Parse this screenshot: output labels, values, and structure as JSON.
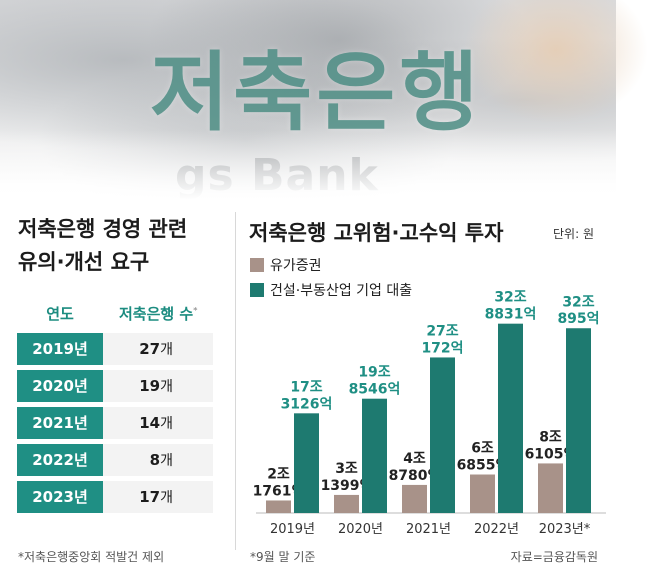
{
  "hero": {
    "title": "저축은행",
    "subtitle": "gs Bank"
  },
  "left_panel": {
    "title_line1": "저축은행 경영 관련",
    "title_line2": "유의·개선 요구",
    "header_year": "연도",
    "header_count": "저축은행 수",
    "header_mark": "*",
    "count_unit": "개",
    "rows": [
      {
        "year": "2019년",
        "count": "27"
      },
      {
        "year": "2020년",
        "count": "19"
      },
      {
        "year": "2021년",
        "count": "14"
      },
      {
        "year": "2022년",
        "count": "8"
      },
      {
        "year": "2023년",
        "count": "17"
      }
    ],
    "footnote": "*저축은행중앙회 적발건 제외"
  },
  "chart_panel": {
    "title": "저축은행 고위험·고수익 투자",
    "unit": "단위: 원",
    "footnote": "*9월 말 기준",
    "source": "자료=금융감독원"
  },
  "chart_data": {
    "type": "bar",
    "title": "저축은행 고위험·고수익 투자",
    "unit_label": "단위: 원",
    "categories": [
      "2019년",
      "2020년",
      "2021년",
      "2022년",
      "2023년*"
    ],
    "series": [
      {
        "name": "유가증권",
        "color": "#a89289",
        "values": [
          2.1761,
          3.1399,
          4.878,
          6.6855,
          8.6105
        ],
        "labels_top": [
          "2조",
          "3조",
          "4조",
          "6조",
          "8조"
        ],
        "labels_bottom": [
          "1761억",
          "1399억",
          "8780억",
          "6855억",
          "6105억"
        ]
      },
      {
        "name": "건설·부동산업 기업 대출",
        "color": "#1e7a70",
        "values": [
          17.3126,
          19.8546,
          27.0172,
          32.8831,
          32.0895
        ],
        "labels_top": [
          "17조",
          "19조",
          "27조",
          "32조",
          "32조"
        ],
        "labels_bottom": [
          "3126억",
          "8546억",
          "172억",
          "8831억",
          "895억"
        ]
      }
    ],
    "label_color": "#1f8f84",
    "unit_in_values": "조원",
    "ylim": [
      0,
      33
    ],
    "legend_position": "top-left",
    "grid": false
  }
}
